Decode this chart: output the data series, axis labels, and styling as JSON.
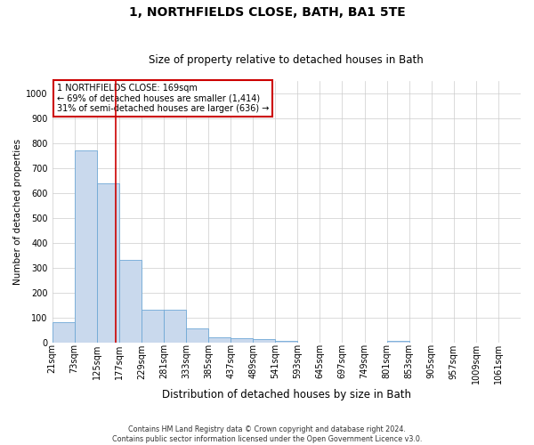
{
  "title": "1, NORTHFIELDS CLOSE, BATH, BA1 5TE",
  "subtitle": "Size of property relative to detached houses in Bath",
  "xlabel": "Distribution of detached houses by size in Bath",
  "ylabel": "Number of detached properties",
  "footer_line1": "Contains HM Land Registry data © Crown copyright and database right 2024.",
  "footer_line2": "Contains public sector information licensed under the Open Government Licence v3.0.",
  "property_label": "1 NORTHFIELDS CLOSE: 169sqm",
  "annotation_line1": "← 69% of detached houses are smaller (1,414)",
  "annotation_line2": "31% of semi-detached houses are larger (636) →",
  "bin_labels": [
    "21sqm",
    "73sqm",
    "125sqm",
    "177sqm",
    "229sqm",
    "281sqm",
    "333sqm",
    "385sqm",
    "437sqm",
    "489sqm",
    "541sqm",
    "593sqm",
    "645sqm",
    "697sqm",
    "749sqm",
    "801sqm",
    "853sqm",
    "905sqm",
    "957sqm",
    "1009sqm",
    "1061sqm"
  ],
  "bin_edges": [
    21,
    73,
    125,
    177,
    229,
    281,
    333,
    385,
    437,
    489,
    541,
    593,
    645,
    697,
    749,
    801,
    853,
    905,
    957,
    1009,
    1061,
    1113
  ],
  "bar_values": [
    83,
    770,
    640,
    330,
    130,
    130,
    57,
    22,
    17,
    12,
    8,
    0,
    0,
    0,
    0,
    7,
    0,
    0,
    0,
    0,
    0
  ],
  "bar_color": "#c9d9ed",
  "bar_edge_color": "#6fa8d6",
  "vline_x": 169,
  "vline_color": "#cc0000",
  "ylim": [
    0,
    1050
  ],
  "yticks": [
    0,
    100,
    200,
    300,
    400,
    500,
    600,
    700,
    800,
    900,
    1000
  ],
  "grid_color": "#cccccc",
  "annotation_box_color": "#cc0000",
  "bg_color": "#ffffff",
  "title_fontsize": 10,
  "subtitle_fontsize": 8.5,
  "ylabel_fontsize": 7.5,
  "xlabel_fontsize": 8.5,
  "tick_fontsize": 7,
  "footer_fontsize": 5.8,
  "annot_fontsize": 7
}
